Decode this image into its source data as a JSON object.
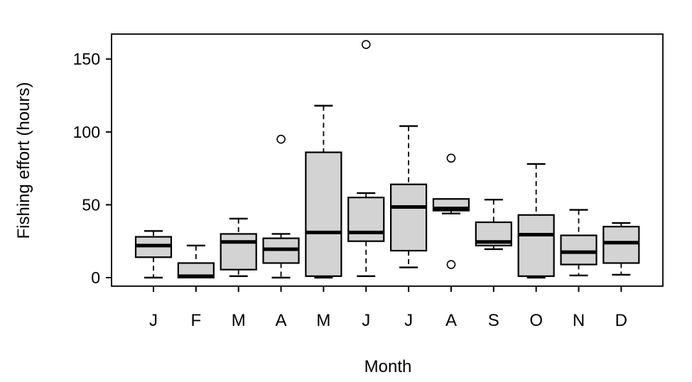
{
  "chart_data": {
    "type": "boxplot",
    "title": "",
    "xlabel": "Month",
    "ylabel": "Fishing effort (hours)",
    "categories": [
      "J",
      "F",
      "M",
      "A",
      "M",
      "J",
      "J",
      "A",
      "S",
      "O",
      "N",
      "D"
    ],
    "y_ticks": [
      0,
      50,
      100,
      150
    ],
    "ylim": [
      -6,
      167
    ],
    "grid": false,
    "legend": "none",
    "boxes": [
      {
        "label": "J",
        "low": 0,
        "q1": 14,
        "median": 22,
        "q3": 28,
        "high": 32,
        "outliers": []
      },
      {
        "label": "F",
        "low": 0,
        "q1": 0,
        "median": 1,
        "q3": 10,
        "high": 22,
        "outliers": []
      },
      {
        "label": "M",
        "low": 1,
        "q1": 5.5,
        "median": 24.5,
        "q3": 30,
        "high": 40.5,
        "outliers": []
      },
      {
        "label": "A",
        "low": 0,
        "q1": 10,
        "median": 19.5,
        "q3": 27,
        "high": 30,
        "outliers": [
          95
        ]
      },
      {
        "label": "M",
        "low": 0,
        "q1": 1,
        "median": 31,
        "q3": 86,
        "high": 118,
        "outliers": []
      },
      {
        "label": "J",
        "low": 1,
        "q1": 25,
        "median": 31,
        "q3": 55,
        "high": 58,
        "outliers": [
          160
        ]
      },
      {
        "label": "J",
        "low": 7,
        "q1": 18.5,
        "median": 48.5,
        "q3": 64,
        "high": 104,
        "outliers": []
      },
      {
        "label": "A",
        "low": 44,
        "q1": 46,
        "median": 47.5,
        "q3": 54,
        "high": 54,
        "outliers": [
          82,
          9
        ]
      },
      {
        "label": "S",
        "low": 19.5,
        "q1": 22,
        "median": 24.5,
        "q3": 38,
        "high": 53.5,
        "outliers": []
      },
      {
        "label": "O",
        "low": 0,
        "q1": 1,
        "median": 29.5,
        "q3": 43,
        "high": 78,
        "outliers": []
      },
      {
        "label": "N",
        "low": 1.5,
        "q1": 9,
        "median": 17.5,
        "q3": 29,
        "high": 46.5,
        "outliers": []
      },
      {
        "label": "D",
        "low": 2,
        "q1": 10,
        "median": 24,
        "q3": 35,
        "high": 37.5,
        "outliers": []
      }
    ],
    "colors": {
      "box_fill": "#d3d3d3",
      "box_border": "#000000",
      "median": "#000000",
      "whisker": "#000000",
      "outlier_stroke": "#000000",
      "text": "#000000",
      "background": "#ffffff"
    }
  }
}
